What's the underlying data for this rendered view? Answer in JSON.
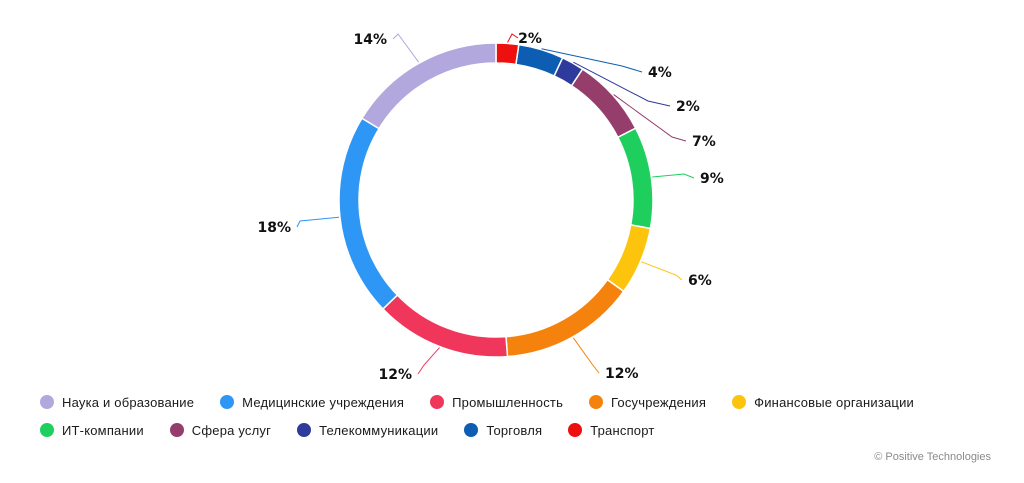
{
  "chart_data": {
    "type": "pie",
    "style": "donut",
    "categories": [
      "Транспорт",
      "Торговля",
      "Телекоммуникации",
      "Сфера услуг",
      "ИТ-компании",
      "Финансовые организации",
      "Госучреждения",
      "Промышленность",
      "Медицинские учреждения",
      "Наука и образование"
    ],
    "values": [
      2,
      4,
      2,
      7,
      9,
      6,
      12,
      12,
      18,
      14
    ],
    "labels": [
      "2%",
      "4%",
      "2%",
      "7%",
      "9%",
      "6%",
      "12%",
      "12%",
      "18%",
      "14%"
    ],
    "colors": [
      "#ee0f0f",
      "#0d5eb3",
      "#2e3a9c",
      "#953d6b",
      "#1ecf5e",
      "#fcc40d",
      "#f5820d",
      "#f0365b",
      "#2e96f5",
      "#b2a8dd"
    ]
  },
  "legend": {
    "rows": [
      [
        {
          "label": "Наука и образование",
          "color": "#b2a8dd"
        },
        {
          "label": "Медицинские учреждения",
          "color": "#2e96f5"
        },
        {
          "label": "Промышленность",
          "color": "#f0365b"
        },
        {
          "label": "Госучреждения",
          "color": "#f5820d"
        },
        {
          "label": "Финансовые организации",
          "color": "#fcc40d"
        }
      ],
      [
        {
          "label": "ИТ-компании",
          "color": "#1ecf5e"
        },
        {
          "label": "Сфера услуг",
          "color": "#953d6b"
        },
        {
          "label": "Телекоммуникации",
          "color": "#2e3a9c"
        },
        {
          "label": "Торговля",
          "color": "#0d5eb3"
        },
        {
          "label": "Транспорт",
          "color": "#ee0f0f"
        }
      ]
    ]
  },
  "credit": "© Positive Technologies"
}
